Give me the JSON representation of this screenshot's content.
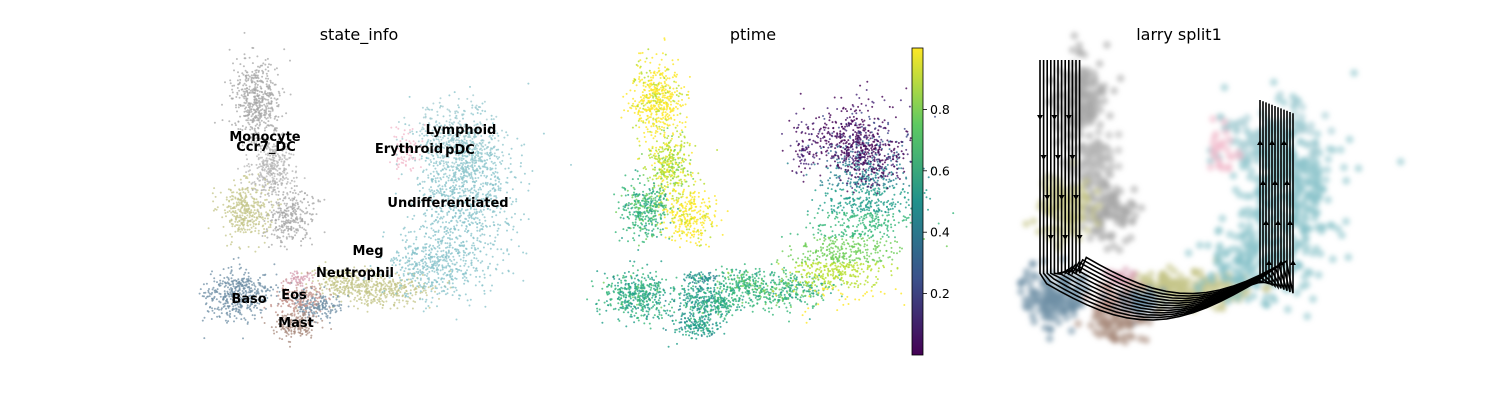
{
  "chart_data": [
    {
      "type": "scatter",
      "title": "state_info",
      "color_by": "categorical",
      "categories": [
        {
          "label": "Monocyte",
          "color": "#a6a6a6"
        },
        {
          "label": "Ccr7_DC",
          "color": "#b5b5b5"
        },
        {
          "label": "Erythroid",
          "color": "#f1b6c8"
        },
        {
          "label": "Lymphoid",
          "color": "#9fc9cf"
        },
        {
          "label": "pDC",
          "color": "#8ec5cc"
        },
        {
          "label": "Undifferentiated",
          "color": "#86c1c9"
        },
        {
          "label": "Meg",
          "color": "#d7a1b3"
        },
        {
          "label": "Neutrophil",
          "color": "#c4c589"
        },
        {
          "label": "Eos",
          "color": "#c08f87"
        },
        {
          "label": "Baso",
          "color": "#6f8fa5"
        },
        {
          "label": "Mast",
          "color": "#a88a7c"
        }
      ],
      "axes": "off",
      "legend": "on data"
    },
    {
      "type": "scatter",
      "title": "ptime",
      "color_by": "continuous",
      "colormap": "viridis",
      "colorbar": {
        "ticks": [
          0.2,
          0.4,
          0.6,
          0.8
        ],
        "range": [
          0.0,
          1.0
        ],
        "colors": [
          "#440154",
          "#3b528b",
          "#21918c",
          "#5ec962",
          "#fde725"
        ]
      },
      "axes": "off"
    },
    {
      "type": "scatter",
      "title": "larry split1",
      "overlay": "streamlines with arrows",
      "stream_color": "#000000",
      "axes": "off"
    }
  ]
}
